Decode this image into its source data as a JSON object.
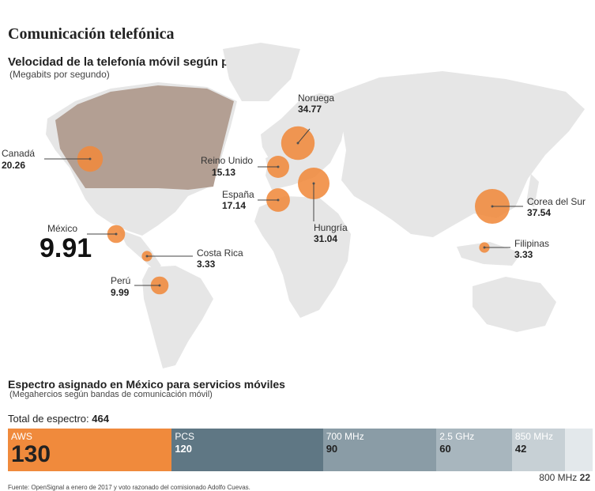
{
  "title": "Comunicación telefónica",
  "map": {
    "title": "Velocidad de la telefonía móvil según país",
    "subtitle": "(Megabits por segundo)"
  },
  "chart_data": [
    {
      "type": "bubble-map",
      "title": "Velocidad de la telefonía móvil según país",
      "subtitle": "(Megabits por segundo)",
      "color": "#f08a3c",
      "countries": [
        {
          "name": "Noruega",
          "value": "34.77"
        },
        {
          "name": "Canadá",
          "value": "20.26"
        },
        {
          "name": "Reino Unido",
          "value": "15.13"
        },
        {
          "name": "España",
          "value": "17.14"
        },
        {
          "name": "Hungría",
          "value": "31.04"
        },
        {
          "name": "Corea del Sur",
          "value": "37.54"
        },
        {
          "name": "México",
          "value": "9.91"
        },
        {
          "name": "Costa Rica",
          "value": "3.33"
        },
        {
          "name": "Filipinas",
          "value": "3.33"
        },
        {
          "name": "Perú",
          "value": "9.99"
        }
      ]
    },
    {
      "type": "stacked-bar",
      "title": "Espectro asignado en México para servicios móviles",
      "subtitle": "(Megahercios según bandas de comunicación móvil)",
      "total_label": "Total de espectro:",
      "total": 464,
      "segments": [
        {
          "name": "AWS",
          "value": 130,
          "color": "#f08a3c",
          "text_color": "#ffffff",
          "value_color": "#222222"
        },
        {
          "name": "PCS",
          "value": 120,
          "color": "#5f7784",
          "text_color": "#ffffff",
          "value_color": "#ffffff"
        },
        {
          "name": "700 MHz",
          "value": 90,
          "color": "#8a9ca6",
          "text_color": "#ffffff",
          "value_color": "#222222"
        },
        {
          "name": "2.5 GHz",
          "value": 60,
          "color": "#a8b6be",
          "text_color": "#ffffff",
          "value_color": "#222222"
        },
        {
          "name": "850 MHz",
          "value": 42,
          "color": "#c7d0d5",
          "text_color": "#ffffff",
          "value_color": "#222222"
        },
        {
          "name": "800 MHz",
          "value": 22,
          "color": "#e3e8eb",
          "text_color": "#333333",
          "value_color": "#222222"
        }
      ]
    }
  ],
  "spectrum": {
    "tail_band": "800 MHz",
    "tail_value": "22"
  },
  "source": "Fuente: OpenSignal a enero de 2017 y voto razonado del comisionado Adolfo Cuevas."
}
